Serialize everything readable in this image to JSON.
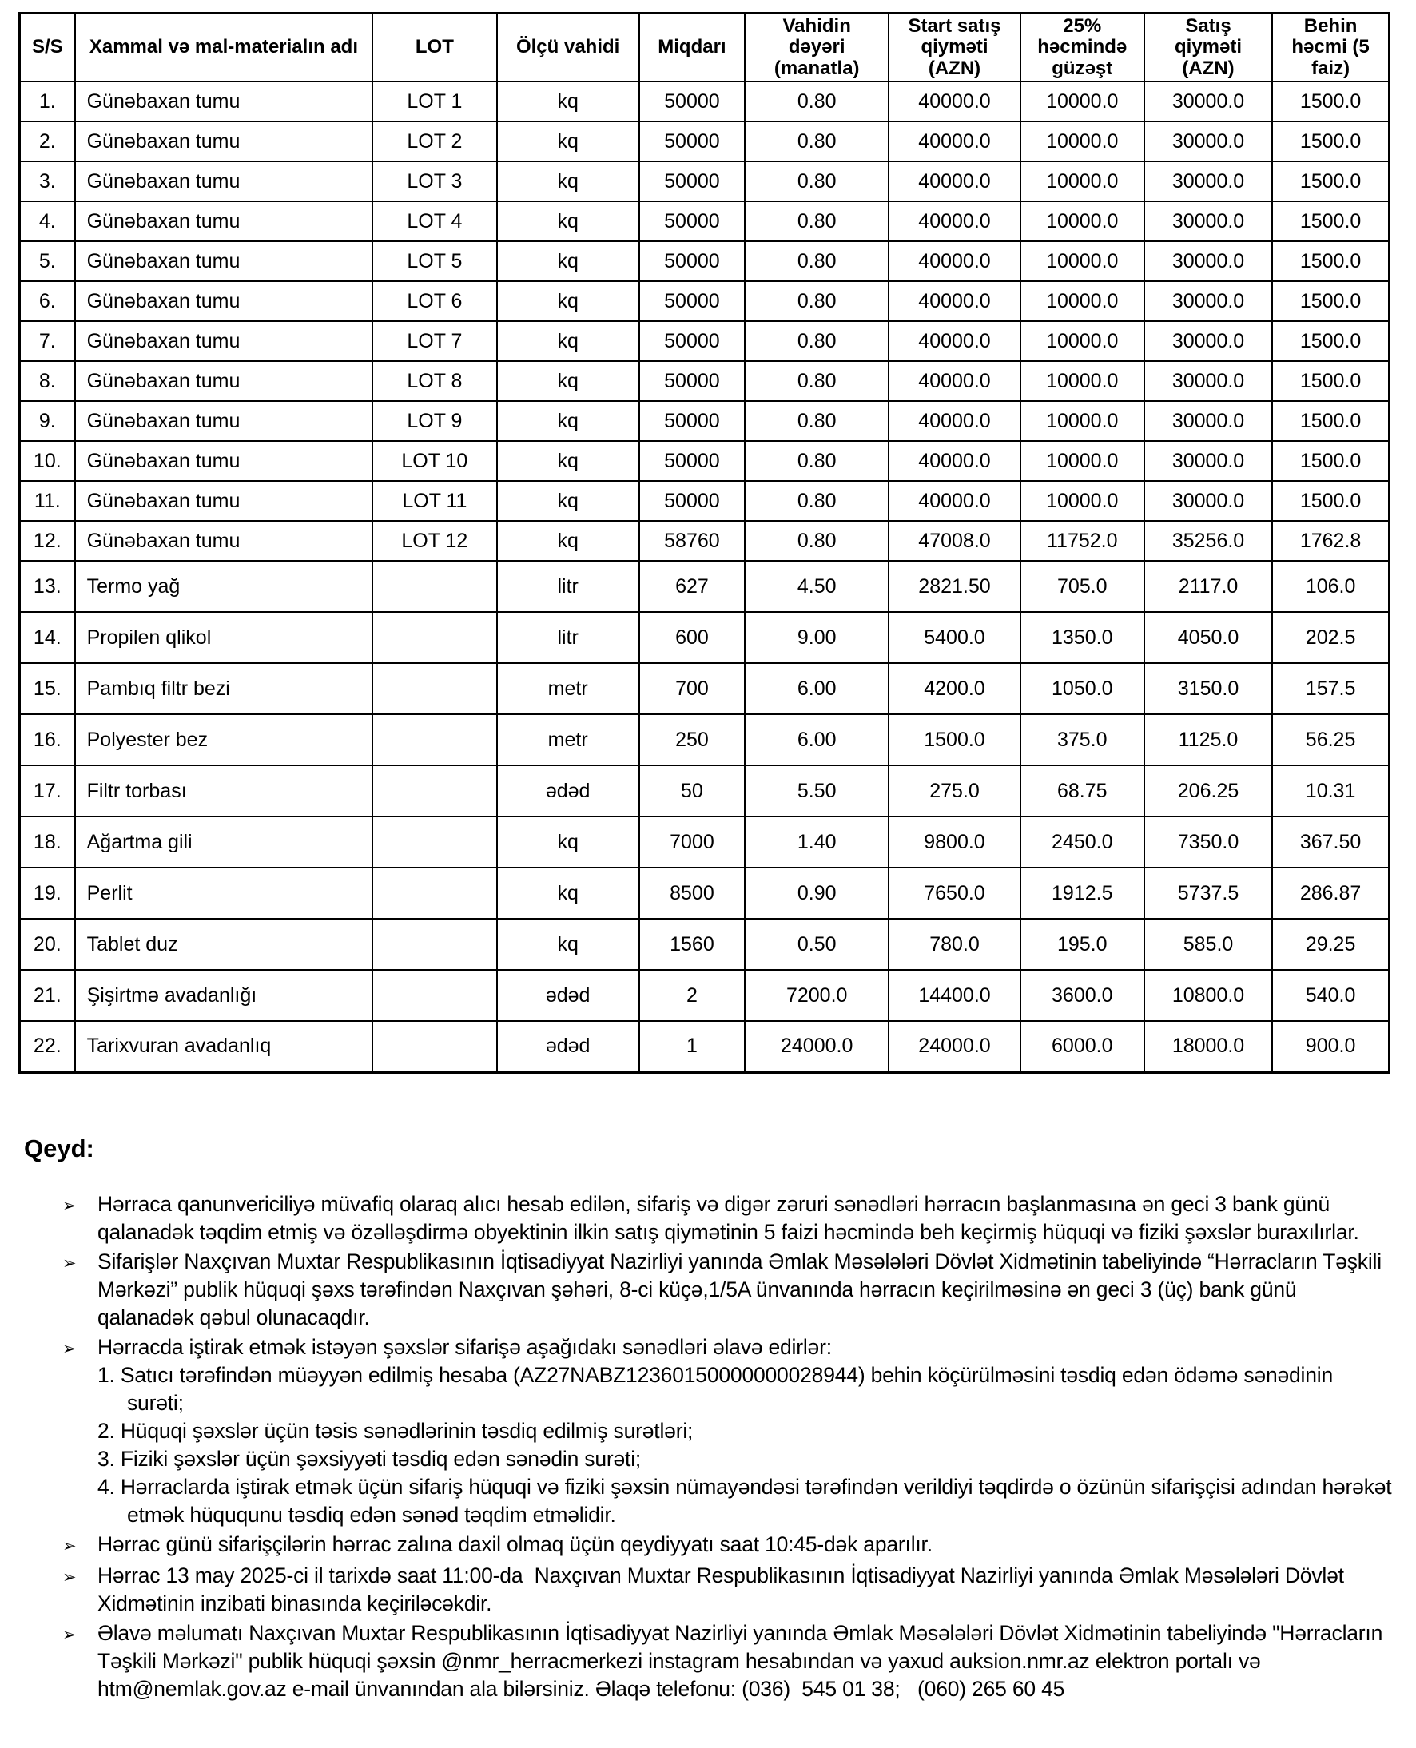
{
  "colors": {
    "background": "#ffffff",
    "text": "#000000",
    "border": "#000000"
  },
  "table": {
    "headers": [
      "S/S",
      "Xammal və mal-materialın adı",
      "LOT",
      "Ölçü vahidi",
      "Miqdarı",
      "Vahidin dəyəri (manatla)",
      "Start satış qiyməti (AZN)",
      "25% həcmində güzəşt",
      "Satış qiyməti (AZN)",
      "Behin həcmi (5 faiz)"
    ],
    "rows": [
      [
        "1.",
        "Günəbaxan tumu",
        "LOT 1",
        "kq",
        "50000",
        "0.80",
        "40000.0",
        "10000.0",
        "30000.0",
        "1500.0"
      ],
      [
        "2.",
        "Günəbaxan tumu",
        "LOT 2",
        "kq",
        "50000",
        "0.80",
        "40000.0",
        "10000.0",
        "30000.0",
        "1500.0"
      ],
      [
        "3.",
        "Günəbaxan tumu",
        "LOT 3",
        "kq",
        "50000",
        "0.80",
        "40000.0",
        "10000.0",
        "30000.0",
        "1500.0"
      ],
      [
        "4.",
        "Günəbaxan tumu",
        "LOT 4",
        "kq",
        "50000",
        "0.80",
        "40000.0",
        "10000.0",
        "30000.0",
        "1500.0"
      ],
      [
        "5.",
        "Günəbaxan tumu",
        "LOT 5",
        "kq",
        "50000",
        "0.80",
        "40000.0",
        "10000.0",
        "30000.0",
        "1500.0"
      ],
      [
        "6.",
        "Günəbaxan tumu",
        "LOT 6",
        "kq",
        "50000",
        "0.80",
        "40000.0",
        "10000.0",
        "30000.0",
        "1500.0"
      ],
      [
        "7.",
        "Günəbaxan tumu",
        "LOT 7",
        "kq",
        "50000",
        "0.80",
        "40000.0",
        "10000.0",
        "30000.0",
        "1500.0"
      ],
      [
        "8.",
        "Günəbaxan tumu",
        "LOT 8",
        "kq",
        "50000",
        "0.80",
        "40000.0",
        "10000.0",
        "30000.0",
        "1500.0"
      ],
      [
        "9.",
        "Günəbaxan tumu",
        "LOT 9",
        "kq",
        "50000",
        "0.80",
        "40000.0",
        "10000.0",
        "30000.0",
        "1500.0"
      ],
      [
        "10.",
        "Günəbaxan tumu",
        "LOT 10",
        "kq",
        "50000",
        "0.80",
        "40000.0",
        "10000.0",
        "30000.0",
        "1500.0"
      ],
      [
        "11.",
        "Günəbaxan tumu",
        "LOT 11",
        "kq",
        "50000",
        "0.80",
        "40000.0",
        "10000.0",
        "30000.0",
        "1500.0"
      ],
      [
        "12.",
        "Günəbaxan tumu",
        "LOT 12",
        "kq",
        "58760",
        "0.80",
        "47008.0",
        "11752.0",
        "35256.0",
        "1762.8"
      ],
      [
        "13.",
        "Termo yağ",
        "",
        "litr",
        "627",
        "4.50",
        "2821.50",
        "705.0",
        "2117.0",
        "106.0"
      ],
      [
        "14.",
        "Propilen qlikol",
        "",
        "litr",
        "600",
        "9.00",
        "5400.0",
        "1350.0",
        "4050.0",
        "202.5"
      ],
      [
        "15.",
        "Pambıq filtr bezi",
        "",
        "metr",
        "700",
        "6.00",
        "4200.0",
        "1050.0",
        "3150.0",
        "157.5"
      ],
      [
        "16.",
        "Polyester bez",
        "",
        "metr",
        "250",
        "6.00",
        "1500.0",
        "375.0",
        "1125.0",
        "56.25"
      ],
      [
        "17.",
        "Filtr torbası",
        "",
        "ədəd",
        "50",
        "5.50",
        "275.0",
        "68.75",
        "206.25",
        "10.31"
      ],
      [
        "18.",
        "Ağartma gili",
        "",
        "kq",
        "7000",
        "1.40",
        "9800.0",
        "2450.0",
        "7350.0",
        "367.50"
      ],
      [
        "19.",
        "Perlit",
        "",
        "kq",
        "8500",
        "0.90",
        "7650.0",
        "1912.5",
        "5737.5",
        "286.87"
      ],
      [
        "20.",
        "Tablet duz",
        "",
        "kq",
        "1560",
        "0.50",
        "780.0",
        "195.0",
        "585.0",
        "29.25"
      ],
      [
        "21.",
        "Şişirtmə avadanlığı",
        "",
        "ədəd",
        "2",
        "7200.0",
        "14400.0",
        "3600.0",
        "10800.0",
        "540.0"
      ],
      [
        "22.",
        "Tarixvuran avadanlıq",
        "",
        "ədəd",
        "1",
        "24000.0",
        "24000.0",
        "6000.0",
        "18000.0",
        "900.0"
      ]
    ]
  },
  "notes": {
    "heading": "Qeyd:",
    "marker": "➢",
    "items": [
      {
        "text": "Hərraca qanunvericiliyə müvafiq olaraq alıcı hesab edilən, sifariş və digər zəruri sənədləri hərracın başlanmasına ən geci 3 bank günü qalanadək təqdim etmiş və özəlləşdirmə obyektinin ilkin satış qiymətinin 5 faizi həcmində beh keçirmiş hüquqi və fiziki şəxslər buraxılırlar."
      },
      {
        "text": "Sifarişlər Naxçıvan Muxtar Respublikasının İqtisadiyyat Nazirliyi yanında Əmlak Məsələləri Dövlət Xidmətinin tabeliyində “Hərracların Təşkili Mərkəzi” publik hüquqi şəxs tərəfindən Naxçıvan şəhəri, 8-ci küçə,1/5A ünvanında hərracın keçirilməsinə ən geci 3 (üç) bank günü qalanadək qəbul olunacaqdır."
      },
      {
        "text": "Hərracda iştirak etmək istəyən şəxslər sifarişə aşağıdakı sənədləri əlavə edirlər:",
        "sub": [
          {
            "num": "1.",
            "text": "Satıcı tərəfindən müəyyən edilmiş hesaba (AZ27NABZ12360150000000028944) behin köçürülməsini təsdiq edən ödəmə sənədinin surəti;"
          },
          {
            "num": "2.",
            "text": "Hüquqi şəxslər üçün təsis sənədlərinin təsdiq edilmiş surətləri;"
          },
          {
            "num": "3.",
            "text": "Fiziki şəxslər üçün şəxsiyyəti təsdiq edən sənədin surəti;"
          },
          {
            "num": "4.",
            "text": "Hərraclarda iştirak etmək üçün sifariş hüquqi və fiziki şəxsin nümayəndəsi tərəfindən verildiyi təqdirdə o özünün sifarişçisi adından hərəkət etmək hüququnu təsdiq edən sənəd təqdim etməlidir."
          }
        ]
      },
      {
        "text": "Hərrac günü sifarişçilərin hərrac zalına daxil olmaq üçün qeydiyyatı saat 10:45-dək aparılır."
      },
      {
        "text": "Hərrac 13 may 2025-ci il tarixdə saat 11:00-da  Naxçıvan Muxtar Respublikasının İqtisadiyyat Nazirliyi yanında Əmlak Məsələləri Dövlət Xidmətinin inzibati binasında keçiriləcəkdir."
      },
      {
        "text": "Əlavə məlumatı Naxçıvan Muxtar Respublikasının İqtisadiyyat Nazirliyi yanında Əmlak Məsələləri Dövlət Xidmətinin tabeliyində \"Hərracların Təşkili Mərkəzi\" publik hüquqi şəxsin @nmr_herracmerkezi instagram hesabından və yaxud auksion.nmr.az elektron portalı və htm@nemlak.gov.az e-mail ünvanından ala bilərsiniz. Əlaqə telefonu: (036)  545 01 38;   (060) 265 60 45"
      }
    ]
  }
}
